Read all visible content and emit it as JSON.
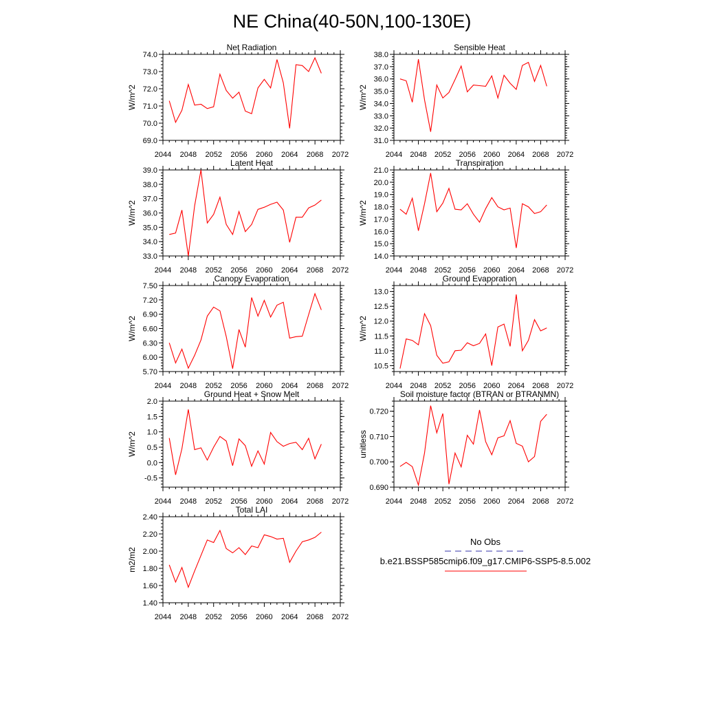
{
  "page": {
    "title": "NE China(40-50N,100-130E)"
  },
  "legend": {
    "obs_label": "No Obs",
    "obs_color": "#3333aa",
    "case_label": "b.e21.BSSP585cmip6.f09_g17.CMIP6-SSP5-8.5.002",
    "case_color": "#ff0000"
  },
  "chart_data": [
    {
      "type": "line",
      "title": "Net Radiation",
      "ylabel": "W/m^2",
      "xlim": [
        2044,
        2072
      ],
      "ylim": [
        69.0,
        74.0
      ],
      "xticks": [
        2044,
        2048,
        2052,
        2056,
        2060,
        2064,
        2068,
        2072
      ],
      "xtick_labels": [
        "2044",
        "2048",
        "2052",
        "2056",
        "2060",
        "2064",
        "2068",
        "2072"
      ],
      "yticks": [
        69.0,
        70.0,
        71.0,
        72.0,
        73.0,
        74.0
      ],
      "ytick_labels": [
        "69.0",
        "70.0",
        "71.0",
        "72.0",
        "73.0",
        "74.0"
      ],
      "series": [
        {
          "x": [
            2045,
            2046,
            2047,
            2048,
            2049,
            2050,
            2051,
            2052,
            2053,
            2054,
            2055,
            2056,
            2057,
            2058,
            2059,
            2060,
            2061,
            2062,
            2063,
            2064,
            2065,
            2066,
            2067,
            2068,
            2069
          ],
          "y": [
            71.3,
            70.05,
            70.75,
            72.25,
            71.05,
            71.1,
            70.85,
            70.95,
            72.85,
            71.9,
            71.45,
            71.8,
            70.7,
            70.55,
            72.05,
            72.55,
            72.05,
            73.7,
            72.35,
            69.7,
            73.4,
            73.35,
            73.0,
            73.8,
            72.9
          ]
        }
      ]
    },
    {
      "type": "line",
      "title": "Sensible Heat",
      "ylabel": "W/m^2",
      "xlim": [
        2044,
        2072
      ],
      "ylim": [
        31.0,
        38.0
      ],
      "xticks": [
        2044,
        2048,
        2052,
        2056,
        2060,
        2064,
        2068,
        2072
      ],
      "xtick_labels": [
        "2044",
        "2048",
        "2052",
        "2056",
        "2060",
        "2064",
        "2068",
        "2072"
      ],
      "yticks": [
        31.0,
        32.0,
        33.0,
        34.0,
        35.0,
        36.0,
        37.0,
        38.0
      ],
      "ytick_labels": [
        "31.0",
        "32.0",
        "33.0",
        "34.0",
        "35.0",
        "36.0",
        "37.0",
        "38.0"
      ],
      "series": [
        {
          "x": [
            2045,
            2046,
            2047,
            2048,
            2049,
            2050,
            2051,
            2052,
            2053,
            2054,
            2055,
            2056,
            2057,
            2058,
            2059,
            2060,
            2061,
            2062,
            2063,
            2064,
            2065,
            2066,
            2067,
            2068,
            2069
          ],
          "y": [
            36.0,
            35.85,
            34.1,
            37.6,
            34.3,
            31.7,
            35.5,
            34.45,
            34.9,
            35.95,
            37.05,
            34.95,
            35.5,
            35.45,
            35.4,
            36.25,
            34.45,
            36.3,
            35.65,
            35.15,
            37.1,
            37.35,
            35.8,
            37.1,
            35.4
          ]
        }
      ]
    },
    {
      "type": "line",
      "title": "Latent Heat",
      "ylabel": "W/m^2",
      "xlim": [
        2044,
        2072
      ],
      "ylim": [
        33.0,
        39.0
      ],
      "xticks": [
        2044,
        2048,
        2052,
        2056,
        2060,
        2064,
        2068,
        2072
      ],
      "xtick_labels": [
        "2044",
        "2048",
        "2052",
        "2056",
        "2060",
        "2064",
        "2068",
        "2072"
      ],
      "yticks": [
        33.0,
        34.0,
        35.0,
        36.0,
        37.0,
        38.0,
        39.0
      ],
      "ytick_labels": [
        "33.0",
        "34.0",
        "35.0",
        "36.0",
        "37.0",
        "38.0",
        "39.0"
      ],
      "series": [
        {
          "x": [
            2045,
            2046,
            2047,
            2048,
            2049,
            2050,
            2051,
            2052,
            2053,
            2054,
            2055,
            2056,
            2057,
            2058,
            2059,
            2060,
            2061,
            2062,
            2063,
            2064,
            2065,
            2066,
            2067,
            2068,
            2069
          ],
          "y": [
            34.5,
            34.6,
            36.2,
            33.0,
            36.5,
            39.0,
            35.3,
            35.9,
            37.1,
            35.2,
            34.5,
            36.1,
            34.7,
            35.2,
            36.25,
            36.4,
            36.6,
            36.75,
            36.2,
            33.95,
            35.7,
            35.7,
            36.35,
            36.55,
            36.9
          ]
        }
      ]
    },
    {
      "type": "line",
      "title": "Transpiration",
      "ylabel": "W/m^2",
      "xlim": [
        2044,
        2072
      ],
      "ylim": [
        14.0,
        21.0
      ],
      "xticks": [
        2044,
        2048,
        2052,
        2056,
        2060,
        2064,
        2068,
        2072
      ],
      "xtick_labels": [
        "2044",
        "2048",
        "2052",
        "2056",
        "2060",
        "2064",
        "2068",
        "2072"
      ],
      "yticks": [
        14.0,
        15.0,
        16.0,
        17.0,
        18.0,
        19.0,
        20.0,
        21.0
      ],
      "ytick_labels": [
        "14.0",
        "15.0",
        "16.0",
        "17.0",
        "18.0",
        "19.0",
        "20.0",
        "21.0"
      ],
      "series": [
        {
          "x": [
            2045,
            2046,
            2047,
            2048,
            2049,
            2050,
            2051,
            2052,
            2053,
            2054,
            2055,
            2056,
            2057,
            2058,
            2059,
            2060,
            2061,
            2062,
            2063,
            2064,
            2065,
            2066,
            2067,
            2068,
            2069
          ],
          "y": [
            17.8,
            17.4,
            18.7,
            16.05,
            18.25,
            20.75,
            17.6,
            18.3,
            19.5,
            17.8,
            17.75,
            18.25,
            17.4,
            16.75,
            17.85,
            18.75,
            18.0,
            17.75,
            17.9,
            14.65,
            18.25,
            18.0,
            17.45,
            17.6,
            18.15
          ]
        }
      ]
    },
    {
      "type": "line",
      "title": "Canopy Evaporation",
      "ylabel": "W/m^2",
      "xlim": [
        2044,
        2072
      ],
      "ylim": [
        5.7,
        7.5
      ],
      "xticks": [
        2044,
        2048,
        2052,
        2056,
        2060,
        2064,
        2068,
        2072
      ],
      "xtick_labels": [
        "2044",
        "2048",
        "2052",
        "2056",
        "2060",
        "2064",
        "2068",
        "2072"
      ],
      "yticks": [
        5.7,
        6.0,
        6.3,
        6.6,
        6.9,
        7.2,
        7.5
      ],
      "ytick_labels": [
        "5.70",
        "6.00",
        "6.30",
        "6.60",
        "6.90",
        "7.20",
        "7.50"
      ],
      "series": [
        {
          "x": [
            2045,
            2046,
            2047,
            2048,
            2049,
            2050,
            2051,
            2052,
            2053,
            2054,
            2055,
            2056,
            2057,
            2058,
            2059,
            2060,
            2061,
            2062,
            2063,
            2064,
            2065,
            2066,
            2067,
            2068,
            2069
          ],
          "y": [
            6.3,
            5.88,
            6.17,
            5.77,
            6.04,
            6.36,
            6.86,
            7.05,
            6.97,
            6.43,
            5.76,
            6.58,
            6.21,
            7.25,
            6.86,
            7.19,
            6.84,
            7.09,
            7.15,
            6.4,
            6.43,
            6.44,
            6.89,
            7.33,
            6.99
          ]
        }
      ]
    },
    {
      "type": "line",
      "title": "Ground Evaporation",
      "ylabel": "W/m^2",
      "xlim": [
        2044,
        2072
      ],
      "ylim": [
        10.3,
        13.2
      ],
      "xticks": [
        2044,
        2048,
        2052,
        2056,
        2060,
        2064,
        2068,
        2072
      ],
      "xtick_labels": [
        "2044",
        "2048",
        "2052",
        "2056",
        "2060",
        "2064",
        "2068",
        "2072"
      ],
      "yticks": [
        10.5,
        11.0,
        11.5,
        12.0,
        12.5,
        13.0
      ],
      "ytick_labels": [
        "10.5",
        "11.0",
        "11.5",
        "12.0",
        "12.5",
        "13.0"
      ],
      "series": [
        {
          "x": [
            2045,
            2046,
            2047,
            2048,
            2049,
            2050,
            2051,
            2052,
            2053,
            2054,
            2055,
            2056,
            2057,
            2058,
            2059,
            2060,
            2061,
            2062,
            2063,
            2064,
            2065,
            2066,
            2067,
            2068,
            2069
          ],
          "y": [
            10.4,
            11.4,
            11.35,
            11.2,
            12.25,
            11.85,
            10.85,
            10.58,
            10.63,
            11.0,
            11.02,
            11.27,
            11.17,
            11.25,
            11.57,
            10.5,
            11.8,
            11.9,
            11.15,
            12.9,
            11.0,
            11.35,
            12.05,
            11.67,
            11.77
          ]
        }
      ]
    },
    {
      "type": "line",
      "title": "Ground Heat + Snow Melt",
      "ylabel": "W/m^2",
      "xlim": [
        2044,
        2072
      ],
      "ylim": [
        -0.8,
        2.0
      ],
      "xticks": [
        2044,
        2048,
        2052,
        2056,
        2060,
        2064,
        2068,
        2072
      ],
      "xtick_labels": [
        "2044",
        "2048",
        "2052",
        "2056",
        "2060",
        "2064",
        "2068",
        "2072"
      ],
      "yticks": [
        -0.5,
        0.0,
        0.5,
        1.0,
        1.5,
        2.0
      ],
      "ytick_labels": [
        "-0.5",
        "0.0",
        "0.5",
        "1.0",
        "1.5",
        "2.0"
      ],
      "series": [
        {
          "x": [
            2045,
            2046,
            2047,
            2048,
            2049,
            2050,
            2051,
            2052,
            2053,
            2054,
            2055,
            2056,
            2057,
            2058,
            2059,
            2060,
            2061,
            2062,
            2063,
            2064,
            2065,
            2066,
            2067,
            2068,
            2069
          ],
          "y": [
            0.8,
            -0.4,
            0.45,
            1.73,
            0.42,
            0.48,
            0.08,
            0.5,
            0.85,
            0.7,
            -0.1,
            0.77,
            0.55,
            -0.12,
            0.38,
            -0.05,
            0.98,
            0.68,
            0.53,
            0.62,
            0.66,
            0.42,
            0.79,
            0.12,
            0.6
          ]
        }
      ]
    },
    {
      "type": "line",
      "title": "Soil moisture factor (BTRAN or BTRANMN)",
      "ylabel": "unitless",
      "xlim": [
        2044,
        2072
      ],
      "ylim": [
        0.69,
        0.724
      ],
      "xticks": [
        2044,
        2048,
        2052,
        2056,
        2060,
        2064,
        2068,
        2072
      ],
      "xtick_labels": [
        "2044",
        "2048",
        "2052",
        "2056",
        "2060",
        "2064",
        "2068",
        "2072"
      ],
      "yticks": [
        0.69,
        0.7,
        0.71,
        0.72
      ],
      "ytick_labels": [
        "0.690",
        "0.700",
        "0.710",
        "0.720"
      ],
      "series": [
        {
          "x": [
            2045,
            2046,
            2047,
            2048,
            2049,
            2050,
            2051,
            2052,
            2053,
            2054,
            2055,
            2056,
            2057,
            2058,
            2059,
            2060,
            2061,
            2062,
            2063,
            2064,
            2065,
            2066,
            2067,
            2068,
            2069
          ],
          "y": [
            0.6982,
            0.6998,
            0.6981,
            0.6908,
            0.7035,
            0.7222,
            0.7115,
            0.7191,
            0.6912,
            0.7035,
            0.698,
            0.7105,
            0.707,
            0.7205,
            0.708,
            0.7028,
            0.7095,
            0.7103,
            0.7163,
            0.7073,
            0.7062,
            0.7,
            0.7021,
            0.716,
            0.7188
          ]
        }
      ]
    },
    {
      "type": "line",
      "title": "Total LAI",
      "ylabel": "m2/m2",
      "xlim": [
        2044,
        2072
      ],
      "ylim": [
        1.4,
        2.4
      ],
      "xticks": [
        2044,
        2048,
        2052,
        2056,
        2060,
        2064,
        2068,
        2072
      ],
      "xtick_labels": [
        "2044",
        "2048",
        "2052",
        "2056",
        "2060",
        "2064",
        "2068",
        "2072"
      ],
      "yticks": [
        1.4,
        1.6,
        1.8,
        2.0,
        2.2,
        2.4
      ],
      "ytick_labels": [
        "1.40",
        "1.60",
        "1.80",
        "2.00",
        "2.20",
        "2.40"
      ],
      "series": [
        {
          "x": [
            2045,
            2046,
            2047,
            2048,
            2049,
            2050,
            2051,
            2052,
            2053,
            2054,
            2055,
            2056,
            2057,
            2058,
            2059,
            2060,
            2061,
            2062,
            2063,
            2064,
            2065,
            2066,
            2067,
            2068,
            2069
          ],
          "y": [
            1.84,
            1.64,
            1.81,
            1.58,
            1.77,
            1.95,
            2.13,
            2.1,
            2.24,
            2.03,
            1.98,
            2.04,
            1.96,
            2.06,
            2.04,
            2.19,
            2.17,
            2.14,
            2.15,
            1.87,
            2.0,
            2.11,
            2.13,
            2.16,
            2.22
          ]
        }
      ]
    }
  ]
}
